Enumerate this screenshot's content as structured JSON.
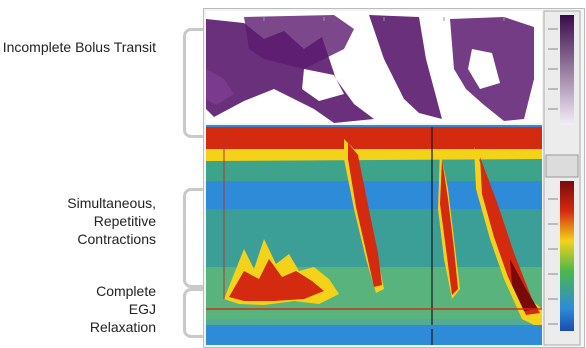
{
  "annotations": [
    {
      "id": "incomplete-bolus",
      "text": "Incomplete Bolus Transit"
    },
    {
      "id": "simultaneous",
      "text": "Simultaneous, Repetitive Contractions"
    },
    {
      "id": "complete-egj",
      "text": "Complete EGJ Relaxation"
    }
  ],
  "colors": {
    "impedance": "#5b1a6e",
    "pressure_low": "#2e8bd8",
    "pressure_mid": "#4bb84a",
    "pressure_high": "#f5d21a",
    "pressure_peak": "#d42a10",
    "pressure_max": "#7a0a0a",
    "bracket": "#c9c9c9"
  }
}
